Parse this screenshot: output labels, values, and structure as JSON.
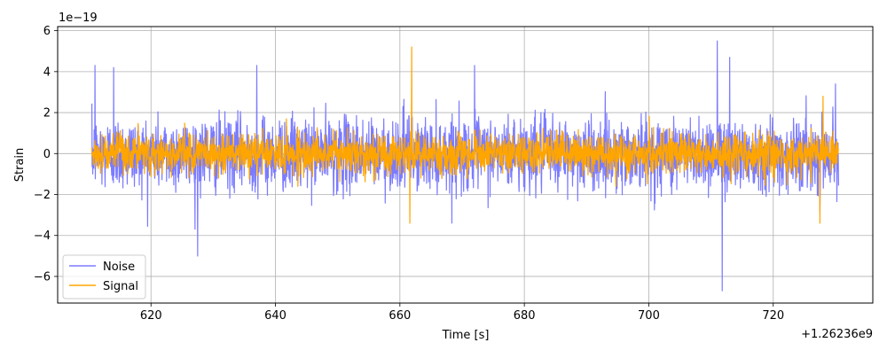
{
  "chart_data": {
    "type": "line",
    "xlabel": "Time [s]",
    "ylabel": "Strain",
    "x_offset_label": "+1.26236e9",
    "y_scale_label": "1e−19",
    "xlim": [
      605.0,
      736.0
    ],
    "ylim": [
      -7.3,
      6.2
    ],
    "x_ticks": [
      620,
      640,
      660,
      680,
      700,
      720
    ],
    "x_tick_labels": [
      "620",
      "640",
      "660",
      "680",
      "700",
      "720"
    ],
    "y_ticks": [
      -6,
      -4,
      -2,
      0,
      2,
      4,
      6
    ],
    "y_tick_labels": [
      "−6",
      "−4",
      "−2",
      "0",
      "2",
      "4",
      "6"
    ],
    "grid": true,
    "legend_position": "lower-left",
    "series": [
      {
        "name": "Noise",
        "color": "#7b7bff",
        "x_range": [
          610.5,
          730.5
        ],
        "typical_range": [
          -2.2,
          2.2
        ],
        "envelope_min": -6.7,
        "envelope_max": 5.5,
        "peaks": [
          [
            611,
            4.3
          ],
          [
            614,
            4.2
          ],
          [
            627.5,
            -5.0
          ],
          [
            637,
            4.3
          ],
          [
            660.5,
            2.3
          ],
          [
            672,
            4.3
          ],
          [
            711,
            5.5
          ],
          [
            711.8,
            -6.7
          ],
          [
            713,
            4.7
          ],
          [
            730,
            3.4
          ]
        ]
      },
      {
        "name": "Signal",
        "color": "#ffa500",
        "x_range": [
          610.5,
          730.5
        ],
        "typical_range": [
          -1.2,
          1.2
        ],
        "envelope_min": -3.5,
        "envelope_max": 5.2,
        "peaks": [
          [
            661.9,
            5.2
          ],
          [
            661.6,
            -3.4
          ],
          [
            727.5,
            -3.4
          ],
          [
            728,
            2.8
          ]
        ]
      }
    ]
  }
}
